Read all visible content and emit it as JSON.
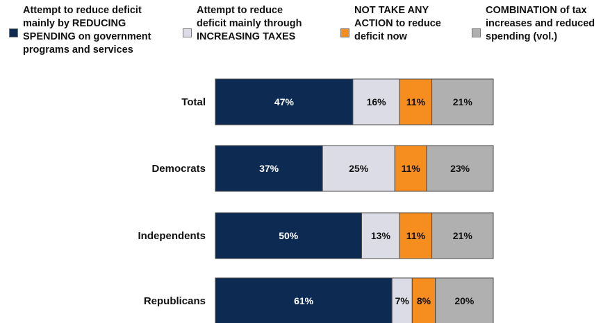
{
  "chart_data": {
    "type": "bar",
    "orientation": "horizontal",
    "stacked": true,
    "title": "",
    "xlabel": "",
    "ylabel": "",
    "xlim": [
      0,
      100
    ],
    "grid": false,
    "legend_position": "top",
    "categories": [
      "Total",
      "Democrats",
      "Independents",
      "Republicans"
    ],
    "series": [
      {
        "name": "Attempt to reduce deficit mainly by REDUCING SPENDING on government programs and services",
        "color": "#0c2a52",
        "label_color": "#ffffff",
        "values": [
          47,
          37,
          50,
          61
        ],
        "labels": [
          "47%",
          "37%",
          "50%",
          "61%"
        ]
      },
      {
        "name": "Attempt to reduce deficit mainly through INCREASING TAXES",
        "color": "#dcdce6",
        "label_color": "#111111",
        "values": [
          16,
          25,
          13,
          7
        ],
        "labels": [
          "16%",
          "25%",
          "13%",
          "7%"
        ]
      },
      {
        "name": "NOT TAKE ANY ACTION to reduce deficit now",
        "color": "#f58d1f",
        "label_color": "#111111",
        "values": [
          11,
          11,
          11,
          8
        ],
        "labels": [
          "11%",
          "11%",
          "11%",
          "8%"
        ]
      },
      {
        "name": "COMBINATION of tax increases and reduced spending (vol.)",
        "color": "#b0b0b0",
        "label_color": "#111111",
        "values": [
          21,
          23,
          21,
          20
        ],
        "labels": [
          "21%",
          "23%",
          "21%",
          "20%"
        ]
      }
    ]
  },
  "legend": [
    {
      "text": "Attempt to reduce deficit\nmainly by REDUCING\nSPENDING on government\nprograms and services"
    },
    {
      "text": "Attempt to reduce\ndeficit mainly through\nINCREASING TAXES"
    },
    {
      "text": "NOT TAKE ANY\nACTION to reduce\ndeficit now"
    },
    {
      "text": "COMBINATION of tax\nincreases and reduced\nspending (vol.)"
    }
  ]
}
